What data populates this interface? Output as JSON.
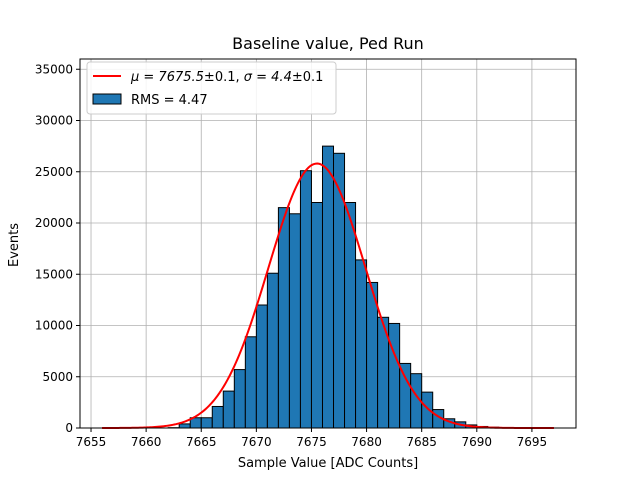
{
  "chart_data": {
    "type": "bar",
    "title": "Baseline value, Ped Run",
    "xlabel": "Sample Value [ADC Counts]",
    "ylabel": "Events",
    "xlim": [
      7654,
      7699
    ],
    "ylim": [
      0,
      36000
    ],
    "grid": true,
    "legend_position": "top-left",
    "bin_width": 1,
    "xticks": [
      7655,
      7660,
      7665,
      7670,
      7675,
      7680,
      7685,
      7690,
      7695
    ],
    "yticks": [
      0,
      5000,
      10000,
      15000,
      20000,
      25000,
      30000,
      35000
    ],
    "histogram": {
      "name": "RMS = 4.47",
      "color": "#1f77b4",
      "edge_color": "#000000",
      "bin_edges": [
        7655,
        7656,
        7657,
        7658,
        7659,
        7660,
        7661,
        7662,
        7663,
        7664,
        7665,
        7666,
        7667,
        7668,
        7669,
        7670,
        7671,
        7672,
        7673,
        7674,
        7675,
        7676,
        7677,
        7678,
        7679,
        7680,
        7681,
        7682,
        7683,
        7684,
        7685,
        7686,
        7687,
        7688,
        7689,
        7690,
        7691,
        7692,
        7693,
        7694,
        7695,
        7696,
        7697
      ],
      "counts": [
        0,
        0,
        0,
        0,
        0,
        0,
        0,
        30,
        400,
        1000,
        1000,
        2100,
        3600,
        5700,
        8900,
        12000,
        15100,
        21500,
        20900,
        25100,
        22000,
        27500,
        26800,
        22000,
        16400,
        14200,
        10800,
        10200,
        6300,
        5300,
        3500,
        1800,
        900,
        600,
        300,
        150,
        80,
        30,
        0,
        0,
        0,
        0
      ]
    },
    "fit": {
      "name": "$\\mu = 7675.5$±0.1, $\\sigma = 4.4$±0.1",
      "color": "#ff0000",
      "mu": 7675.5,
      "sigma": 4.4,
      "amplitude": 25800,
      "x_range": [
        7656,
        7697
      ]
    }
  }
}
